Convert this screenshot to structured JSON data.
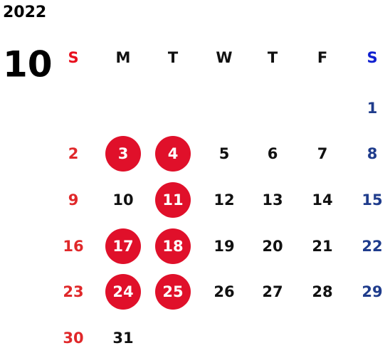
{
  "year": "2022",
  "month": "10",
  "weekdays": [
    "S",
    "M",
    "T",
    "W",
    "T",
    "F",
    "S"
  ],
  "weeks": [
    [
      null,
      null,
      null,
      null,
      null,
      null,
      1
    ],
    [
      2,
      {
        "day": 3,
        "marked": true
      },
      {
        "day": 4,
        "marked": true
      },
      5,
      6,
      7,
      8
    ],
    [
      9,
      10,
      {
        "day": 11,
        "marked": true
      },
      12,
      13,
      14,
      15
    ],
    [
      16,
      {
        "day": 17,
        "marked": true
      },
      {
        "day": 18,
        "marked": true
      },
      19,
      20,
      21,
      22
    ],
    [
      23,
      {
        "day": 24,
        "marked": true
      },
      {
        "day": 25,
        "marked": true
      },
      26,
      27,
      28,
      29
    ],
    [
      30,
      31,
      null,
      null,
      null,
      null,
      null
    ]
  ]
}
